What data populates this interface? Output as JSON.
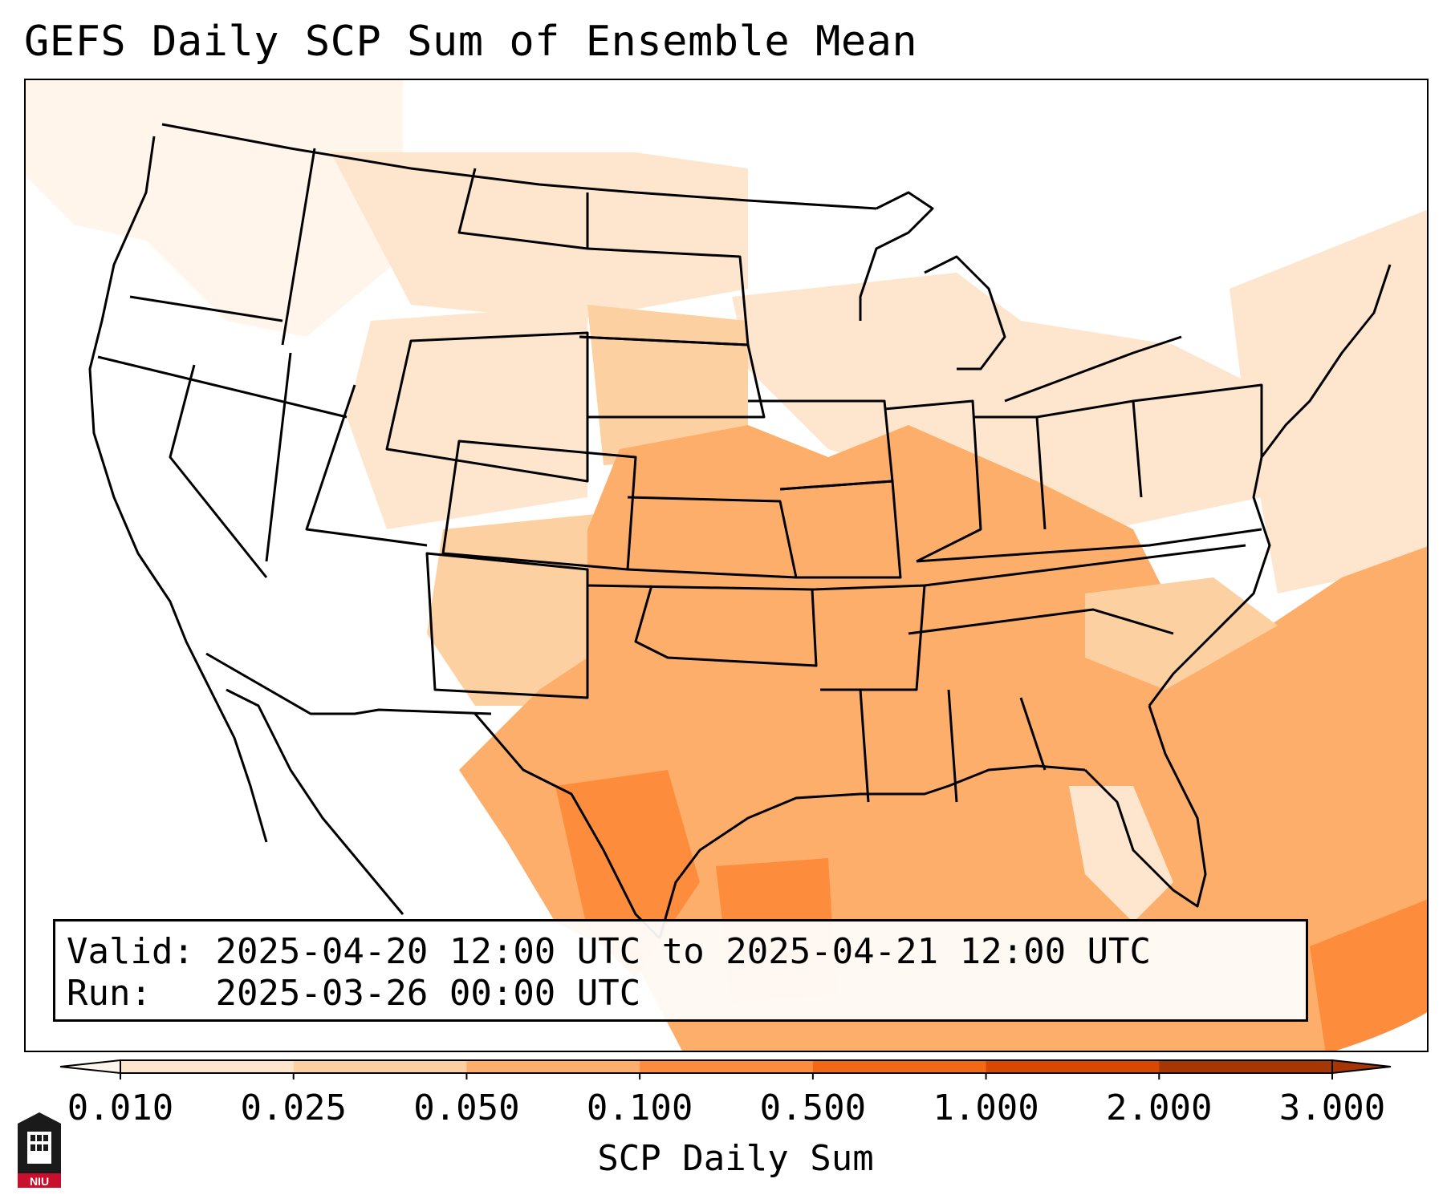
{
  "title": "GEFS Daily SCP Sum of Ensemble Mean",
  "valid_box": {
    "valid_label": "Valid:",
    "valid_value": "2025-04-20 12:00 UTC to 2025-04-21 12:00 UTC",
    "run_label": "Run:",
    "run_value": "2025-03-26 00:00 UTC"
  },
  "colorbar": {
    "label": "SCP Daily Sum",
    "ticks": [
      "0.010",
      "0.025",
      "0.050",
      "0.100",
      "0.500",
      "1.000",
      "2.000",
      "3.000"
    ],
    "colors": [
      "#fff5eb",
      "#fee6ce",
      "#fdd0a2",
      "#fdae6b",
      "#fd8d3c",
      "#f16913",
      "#d94801",
      "#a63603"
    ],
    "extend": "both"
  },
  "map": {
    "projection": "Lambert conformal, CONUS",
    "field": "SCP daily sum (ensemble mean)",
    "legend_levels": {
      "very_light": "#fff5eb",
      "light": "#fee6ce",
      "light_tan": "#fdd0a2",
      "orange": "#fdae6b",
      "dark_orange": "#fd8d3c"
    }
  },
  "logo": {
    "text": "NIU",
    "color": "#c8102e"
  }
}
